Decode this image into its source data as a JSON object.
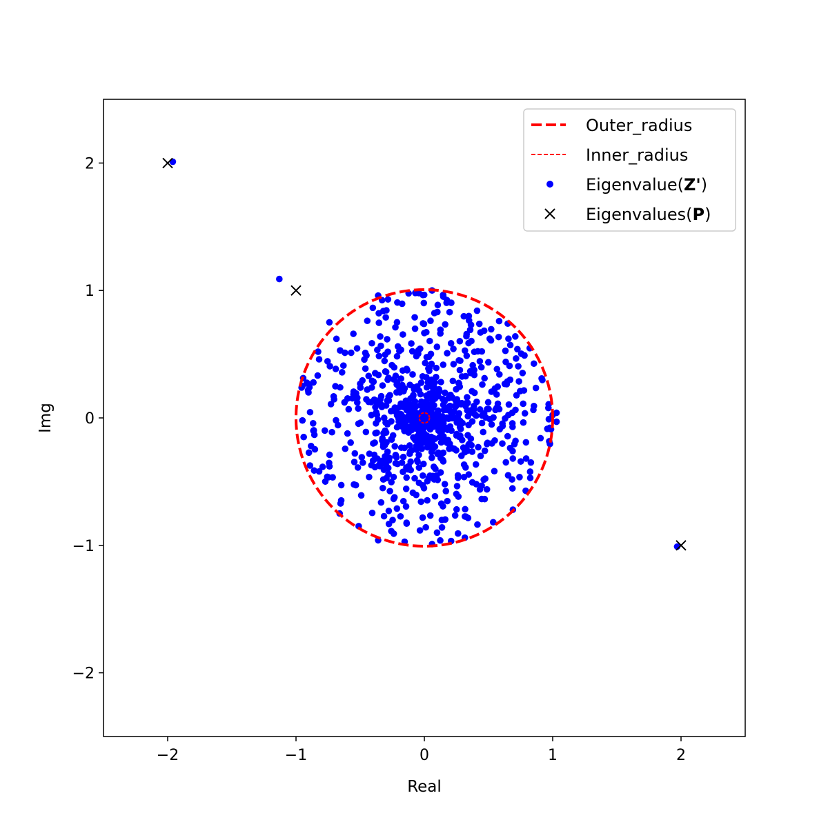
{
  "chart_data": {
    "type": "scatter",
    "title": "",
    "xlabel": "Real",
    "ylabel": "Img",
    "xlim": [
      -2.5,
      2.5
    ],
    "ylim": [
      -2.5,
      2.5
    ],
    "xticks": [
      -2,
      -1,
      0,
      1,
      2
    ],
    "yticks": [
      -2,
      -1,
      0,
      1,
      2
    ],
    "xtick_labels": [
      "−2",
      "−1",
      "0",
      "1",
      "2"
    ],
    "ytick_labels": [
      "−2",
      "−1",
      "0",
      "1",
      "2"
    ],
    "grid": false,
    "legend_position": "upper right",
    "colors": {
      "circles": "#ff0000",
      "eigen_z": "#0000ff",
      "eigen_p": "#000000"
    },
    "legend": [
      {
        "label": "Outer_radius",
        "marker": "thick-dashed-line",
        "color": "#ff0000"
      },
      {
        "label": "Inner_radius",
        "marker": "thin-dashed-line",
        "color": "#ff0000"
      },
      {
        "label_prefix": "Eigenvalue(",
        "label_symbol": "Z'",
        "label_suffix": ")",
        "marker": "dot",
        "color": "#0000ff"
      },
      {
        "label_prefix": "Eigenvalues(",
        "label_symbol": "P",
        "label_suffix": ")",
        "marker": "x",
        "color": "#000000"
      }
    ],
    "circles": [
      {
        "name": "Outer_radius",
        "center": [
          0,
          0
        ],
        "radius": 1.0,
        "style": "thick-dashed"
      },
      {
        "name": "Inner_radius",
        "center": [
          0,
          0
        ],
        "radius": 0.04,
        "style": "thin-dashed"
      }
    ],
    "series": [
      {
        "name": "Eigenvalues(P)",
        "marker": "x",
        "points": [
          [
            -2,
            2
          ],
          [
            -1,
            1
          ],
          [
            2,
            -1
          ]
        ]
      },
      {
        "name": "Eigenvalue(Z')",
        "marker": "dot",
        "outliers": [
          [
            -1.96,
            2.01
          ],
          [
            -1.13,
            1.09
          ],
          [
            1.97,
            -1.01
          ]
        ],
        "highlighted_points": [
          [
            1.03,
            -0.03
          ],
          [
            1.03,
            0.04
          ],
          [
            -0.36,
            -0.96
          ],
          [
            -0.36,
            0.96
          ],
          [
            0.06,
            -0.99
          ],
          [
            0.06,
            1.0
          ],
          [
            -0.74,
            0.75
          ],
          [
            0.65,
            0.74
          ],
          [
            -0.66,
            -0.75
          ],
          [
            0.69,
            -0.72
          ],
          [
            -0.95,
            -0.02
          ],
          [
            -0.94,
            -0.15
          ],
          [
            -0.95,
            0.25
          ],
          [
            0.97,
            -0.01
          ],
          [
            0.78,
            0.49
          ],
          [
            0.83,
            -0.35
          ],
          [
            -0.82,
            0.46
          ],
          [
            -0.82,
            -0.42
          ]
        ],
        "cloud": {
          "count": 900,
          "max_radius": 1.0,
          "central_density": "high"
        }
      }
    ]
  }
}
